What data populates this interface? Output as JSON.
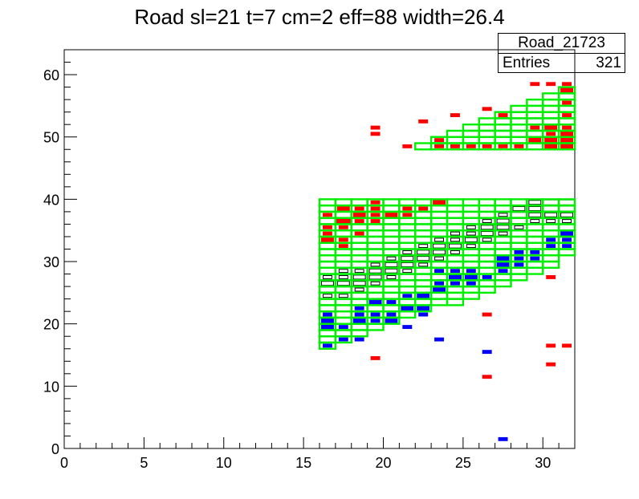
{
  "chart_data": {
    "type": "heatmap",
    "title": "Road sl=21 t=7 cm=2 eff=88 width=26.4",
    "stats": {
      "name": "Road_21723",
      "entries_label": "Entries",
      "entries_value": "321"
    },
    "xlim": [
      0,
      32
    ],
    "ylim": [
      0,
      64
    ],
    "x_ticks": [
      0,
      5,
      10,
      15,
      20,
      25,
      30
    ],
    "y_ticks": [
      0,
      10,
      20,
      30,
      40,
      50,
      60
    ],
    "grid": false,
    "colors": {
      "road": "#00ee00",
      "red": "#ff0000",
      "blue": "#0000ff",
      "hist": "#000000"
    },
    "road_outline": [
      {
        "x": 16,
        "ylo": 16,
        "yhi": 40
      },
      {
        "x": 17,
        "ylo": 17,
        "yhi": 40
      },
      {
        "x": 18,
        "ylo": 18,
        "yhi": 40
      },
      {
        "x": 19,
        "ylo": 19,
        "yhi": 40
      },
      {
        "x": 20,
        "ylo": 20,
        "yhi": 40
      },
      {
        "x": 21,
        "ylo": 21,
        "yhi": 40
      },
      {
        "x": 22,
        "ylo": 22,
        "yhi": 40
      },
      {
        "x": 23,
        "ylo": 23,
        "yhi": 40
      },
      {
        "x": 24,
        "ylo": 23,
        "yhi": 40
      },
      {
        "x": 25,
        "ylo": 24,
        "yhi": 40
      },
      {
        "x": 26,
        "ylo": 25,
        "yhi": 40
      },
      {
        "x": 27,
        "ylo": 26,
        "yhi": 40
      },
      {
        "x": 28,
        "ylo": 27,
        "yhi": 40
      },
      {
        "x": 29,
        "ylo": 28,
        "yhi": 40
      },
      {
        "x": 30,
        "ylo": 29,
        "yhi": 40
      },
      {
        "x": 31,
        "ylo": 31,
        "yhi": 40
      },
      {
        "x": 22,
        "ylo": 48,
        "yhi": 49
      },
      {
        "x": 23,
        "ylo": 48,
        "yhi": 50
      },
      {
        "x": 24,
        "ylo": 48,
        "yhi": 51
      },
      {
        "x": 25,
        "ylo": 48,
        "yhi": 52
      },
      {
        "x": 26,
        "ylo": 48,
        "yhi": 53
      },
      {
        "x": 27,
        "ylo": 48,
        "yhi": 54
      },
      {
        "x": 28,
        "ylo": 48,
        "yhi": 55
      },
      {
        "x": 29,
        "ylo": 48,
        "yhi": 56
      },
      {
        "x": 30,
        "ylo": 48,
        "yhi": 57
      },
      {
        "x": 31,
        "ylo": 48,
        "yhi": 58
      }
    ],
    "red_hits": [
      [
        16,
        37,
        1
      ],
      [
        16,
        34,
        1
      ],
      [
        16,
        35,
        1
      ],
      [
        16,
        33,
        2
      ],
      [
        17,
        38,
        2
      ],
      [
        17,
        36,
        3
      ],
      [
        17,
        35,
        1
      ],
      [
        17,
        32,
        1
      ],
      [
        17,
        33,
        1
      ],
      [
        18,
        38,
        1
      ],
      [
        18,
        37,
        2
      ],
      [
        18,
        36,
        1
      ],
      [
        18,
        34,
        1
      ],
      [
        19,
        39,
        1
      ],
      [
        19,
        38,
        1
      ],
      [
        19,
        37,
        1
      ],
      [
        19,
        36,
        1
      ],
      [
        19,
        51,
        1
      ],
      [
        19,
        50,
        1
      ],
      [
        19,
        14,
        1
      ],
      [
        20,
        37,
        2
      ],
      [
        21,
        48,
        1
      ],
      [
        21,
        38,
        1
      ],
      [
        21,
        37,
        1
      ],
      [
        22,
        52,
        1
      ],
      [
        22,
        38,
        1
      ],
      [
        23,
        39,
        2
      ],
      [
        23,
        48,
        1
      ],
      [
        23,
        49,
        1
      ],
      [
        24,
        53,
        1
      ],
      [
        24,
        48,
        1
      ],
      [
        25,
        48,
        1
      ],
      [
        26,
        54,
        1
      ],
      [
        26,
        48,
        1
      ],
      [
        26,
        21,
        1
      ],
      [
        26,
        11,
        1
      ],
      [
        27,
        48,
        1
      ],
      [
        27,
        53,
        1
      ],
      [
        28,
        48,
        1
      ],
      [
        29,
        49,
        2
      ],
      [
        29,
        51,
        1
      ],
      [
        29,
        58,
        1
      ],
      [
        30,
        48,
        2
      ],
      [
        30,
        49,
        2
      ],
      [
        30,
        51,
        2
      ],
      [
        30,
        50,
        1
      ],
      [
        30,
        58,
        1
      ],
      [
        30,
        16,
        1
      ],
      [
        30,
        13,
        1
      ],
      [
        30,
        27,
        1
      ],
      [
        31,
        48,
        2
      ],
      [
        31,
        49,
        2
      ],
      [
        31,
        50,
        2
      ],
      [
        31,
        51,
        1
      ],
      [
        31,
        53,
        1
      ],
      [
        31,
        55,
        1
      ],
      [
        31,
        57,
        2
      ],
      [
        31,
        58,
        1
      ],
      [
        31,
        16,
        1
      ]
    ],
    "blue_hits": [
      [
        16,
        16,
        1
      ],
      [
        16,
        19,
        2
      ],
      [
        16,
        20,
        2
      ],
      [
        16,
        21,
        1
      ],
      [
        17,
        17,
        1
      ],
      [
        17,
        19,
        1
      ],
      [
        18,
        17,
        1
      ],
      [
        18,
        20,
        2
      ],
      [
        18,
        21,
        1
      ],
      [
        18,
        22,
        1
      ],
      [
        19,
        23,
        2
      ],
      [
        19,
        20,
        1
      ],
      [
        19,
        21,
        1
      ],
      [
        20,
        20,
        2
      ],
      [
        20,
        21,
        1
      ],
      [
        20,
        23,
        1
      ],
      [
        21,
        19,
        1
      ],
      [
        21,
        22,
        2
      ],
      [
        21,
        24,
        1
      ],
      [
        22,
        22,
        2
      ],
      [
        22,
        24,
        2
      ],
      [
        22,
        21,
        1
      ],
      [
        23,
        17,
        1
      ],
      [
        23,
        25,
        2
      ],
      [
        23,
        26,
        1
      ],
      [
        23,
        28,
        1
      ],
      [
        24,
        27,
        2
      ],
      [
        24,
        26,
        1
      ],
      [
        24,
        28,
        1
      ],
      [
        25,
        27,
        2
      ],
      [
        25,
        28,
        1
      ],
      [
        25,
        26,
        1
      ],
      [
        26,
        27,
        1
      ],
      [
        26,
        15,
        1
      ],
      [
        27,
        29,
        2
      ],
      [
        27,
        30,
        2
      ],
      [
        27,
        28,
        1
      ],
      [
        27,
        1,
        1
      ],
      [
        28,
        30,
        1
      ],
      [
        28,
        31,
        1
      ],
      [
        28,
        29,
        1
      ],
      [
        29,
        30,
        1
      ],
      [
        29,
        31,
        1
      ],
      [
        30,
        33,
        1
      ],
      [
        30,
        32,
        1
      ],
      [
        31,
        34,
        2
      ],
      [
        31,
        33,
        1
      ],
      [
        31,
        32,
        1
      ]
    ],
    "black_hits": [
      [
        16,
        25,
        3
      ],
      [
        16,
        26,
        2
      ],
      [
        16,
        24,
        1
      ],
      [
        16,
        27,
        1
      ],
      [
        17,
        26,
        2
      ],
      [
        17,
        24,
        1
      ],
      [
        17,
        27,
        1
      ],
      [
        17,
        28,
        1
      ],
      [
        18,
        25,
        1
      ],
      [
        18,
        27,
        2
      ],
      [
        18,
        26,
        2
      ],
      [
        18,
        28,
        1
      ],
      [
        19,
        27,
        2
      ],
      [
        19,
        28,
        2
      ],
      [
        19,
        26,
        1
      ],
      [
        19,
        29,
        1
      ],
      [
        20,
        28,
        2
      ],
      [
        20,
        29,
        2
      ],
      [
        20,
        27,
        1
      ],
      [
        20,
        30,
        1
      ],
      [
        21,
        29,
        2
      ],
      [
        21,
        30,
        2
      ],
      [
        21,
        31,
        1
      ],
      [
        21,
        28,
        1
      ],
      [
        22,
        30,
        2
      ],
      [
        22,
        31,
        2
      ],
      [
        22,
        32,
        1
      ],
      [
        22,
        29,
        1
      ],
      [
        23,
        31,
        2
      ],
      [
        23,
        32,
        2
      ],
      [
        23,
        33,
        1
      ],
      [
        23,
        30,
        1
      ],
      [
        24,
        32,
        2
      ],
      [
        24,
        33,
        1
      ],
      [
        24,
        34,
        1
      ],
      [
        24,
        31,
        1
      ],
      [
        25,
        33,
        2
      ],
      [
        25,
        34,
        1
      ],
      [
        25,
        35,
        1
      ],
      [
        25,
        32,
        1
      ],
      [
        26,
        34,
        2
      ],
      [
        26,
        35,
        2
      ],
      [
        26,
        36,
        1
      ],
      [
        26,
        33,
        1
      ],
      [
        27,
        35,
        2
      ],
      [
        27,
        36,
        2
      ],
      [
        27,
        37,
        1
      ],
      [
        27,
        34,
        1
      ],
      [
        28,
        36,
        3
      ],
      [
        28,
        37,
        3
      ],
      [
        28,
        38,
        2
      ],
      [
        28,
        35,
        1
      ],
      [
        29,
        37,
        2
      ],
      [
        29,
        38,
        2
      ],
      [
        29,
        39,
        2
      ],
      [
        29,
        36,
        1
      ],
      [
        30,
        38,
        3
      ],
      [
        30,
        39,
        3
      ],
      [
        30,
        37,
        2
      ],
      [
        30,
        36,
        1
      ],
      [
        31,
        38,
        3
      ],
      [
        31,
        39,
        3
      ],
      [
        31,
        37,
        2
      ],
      [
        31,
        36,
        1
      ]
    ]
  }
}
